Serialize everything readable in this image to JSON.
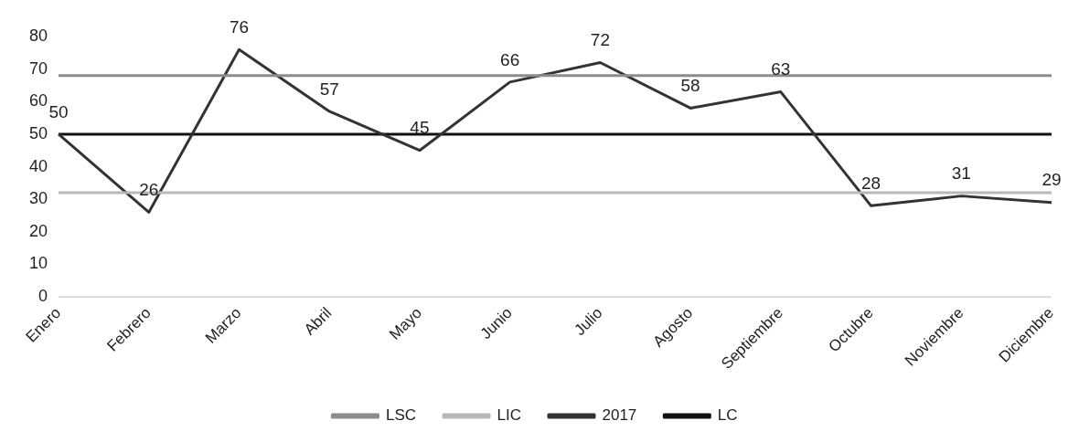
{
  "chart_data": {
    "type": "line",
    "categories": [
      "Enero",
      "Febrero",
      "Marzo",
      "Abril",
      "Mayo",
      "Junio",
      "Julio",
      "Agosto",
      "Septiembre",
      "Octubre",
      "Noviembre",
      "Diciembre"
    ],
    "ylim": [
      0,
      80
    ],
    "yticks": [
      0,
      10,
      20,
      30,
      40,
      50,
      60,
      70,
      80
    ],
    "grid": false,
    "legend": "bottom",
    "marker": "none",
    "line_style": "solid",
    "series": [
      {
        "name": "LSC",
        "color": "#8c8c8c",
        "values": [
          68,
          68,
          68,
          68,
          68,
          68,
          68,
          68,
          68,
          68,
          68,
          68
        ]
      },
      {
        "name": "LIC",
        "color": "#b8b8b8",
        "values": [
          32,
          32,
          32,
          32,
          32,
          32,
          32,
          32,
          32,
          32,
          32,
          32
        ]
      },
      {
        "name": "2017",
        "color": "#333333",
        "values": [
          50,
          26,
          76,
          57,
          45,
          66,
          72,
          58,
          63,
          28,
          31,
          29
        ],
        "value_labels": [
          "50",
          "26",
          "76",
          "57",
          "45",
          "66",
          "72",
          "58",
          "63",
          "28",
          "31",
          "29"
        ]
      },
      {
        "name": "LC",
        "color": "#111111",
        "values": [
          50,
          50,
          50,
          50,
          50,
          50,
          50,
          50,
          50,
          50,
          50,
          50
        ]
      }
    ]
  }
}
